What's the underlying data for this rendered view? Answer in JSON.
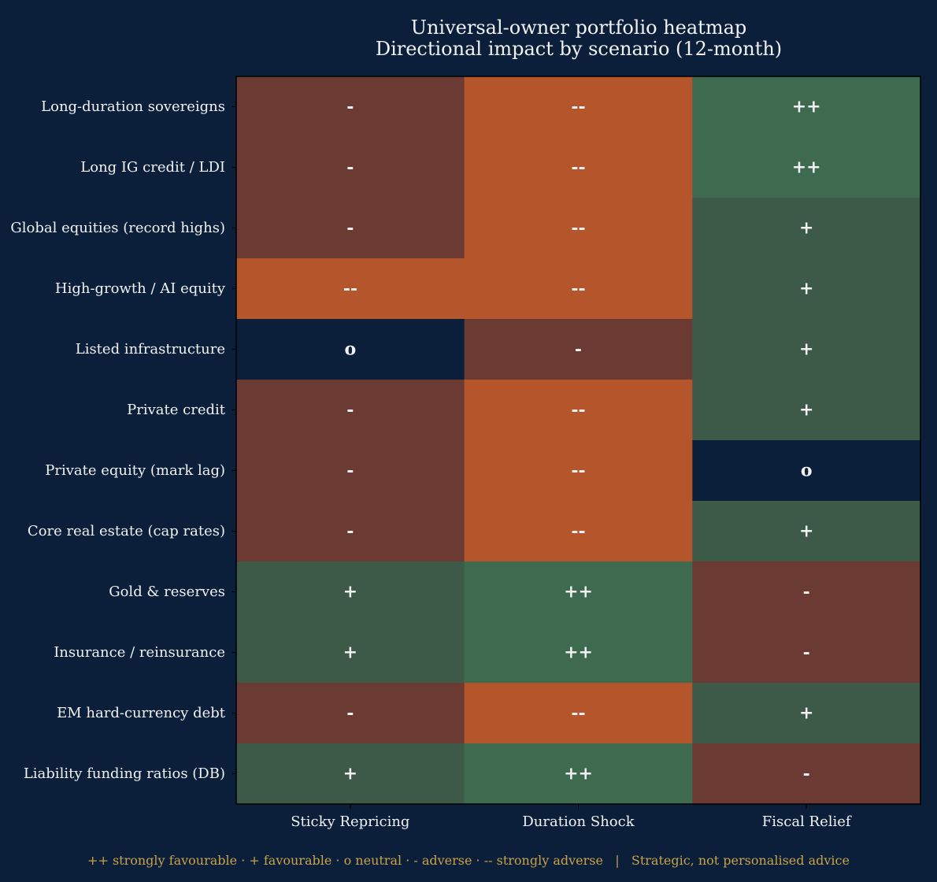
{
  "chart_data": {
    "type": "heatmap",
    "title": "Universal-owner portfolio heatmap",
    "subtitle": "Directional impact by scenario (12-month)",
    "xlabel": "",
    "ylabel": "",
    "columns": [
      "Sticky Repricing",
      "Duration Shock",
      "Fiscal Relief"
    ],
    "rows": [
      "Long-duration sovereigns",
      "Long IG credit / LDI",
      "Global equities (record highs)",
      "High-growth / AI equity",
      "Listed infrastructure",
      "Private credit",
      "Private equity (mark lag)",
      "Core real estate (cap rates)",
      "Gold & reserves",
      "Insurance / reinsurance",
      "EM hard-currency debt",
      "Liability funding ratios (DB)"
    ],
    "values": [
      [
        -1,
        -2,
        2
      ],
      [
        -1,
        -2,
        2
      ],
      [
        -1,
        -2,
        1
      ],
      [
        -2,
        -2,
        1
      ],
      [
        0,
        -1,
        1
      ],
      [
        -1,
        -2,
        1
      ],
      [
        -1,
        -2,
        0
      ],
      [
        -1,
        -2,
        1
      ],
      [
        1,
        2,
        -1
      ],
      [
        1,
        2,
        -1
      ],
      [
        -1,
        -2,
        1
      ],
      [
        1,
        2,
        -1
      ]
    ],
    "symbols": {
      "2": "++",
      "1": "+",
      "0": "o",
      "-1": "-",
      "-2": "--"
    },
    "colors": {
      "2": "#3e6b4f",
      "1": "#3d5a49",
      "0": "#0b1f3a",
      "-1": "#6b3b33",
      "-2": "#b4552b"
    },
    "background": "#0b1f3a",
    "text_color": "#f2f2f2",
    "footer_color": "#c9a24a",
    "footer": "++ strongly favourable · + favourable · o neutral · - adverse · -- strongly adverse   |   Strategic, not personalised advice"
  }
}
